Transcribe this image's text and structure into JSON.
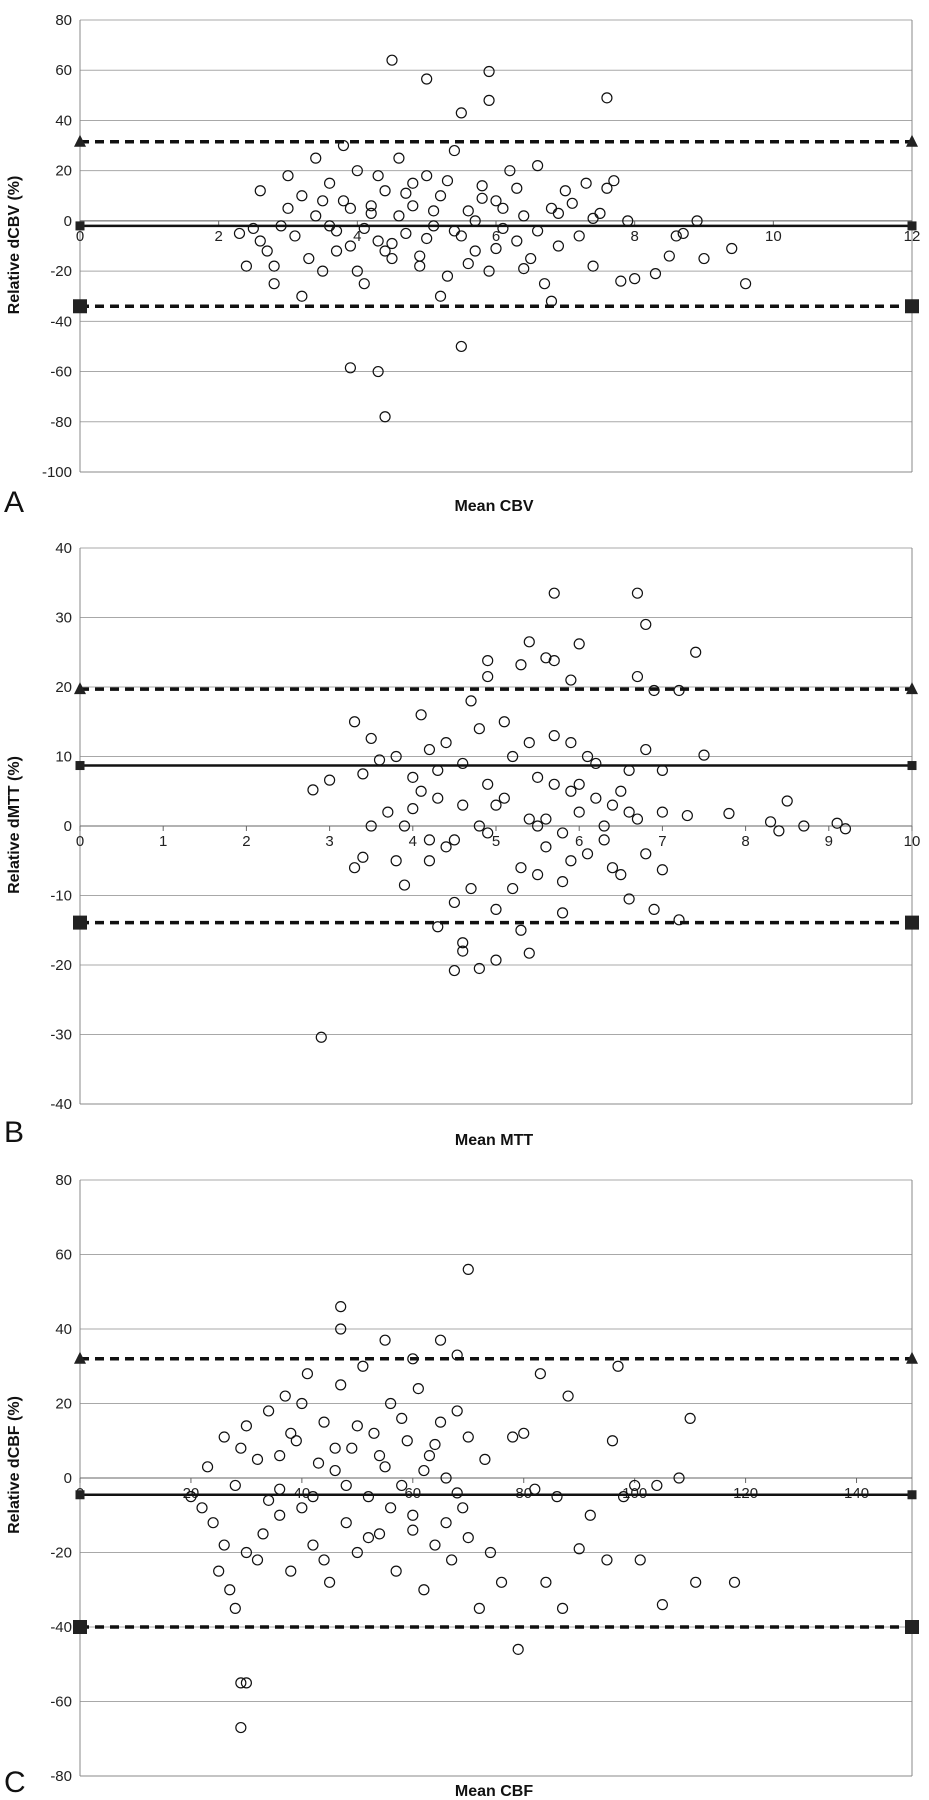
{
  "chart_data": [
    {
      "type": "scatter",
      "panel_label": "A",
      "xlabel": "Mean CBV",
      "ylabel": "Relative dCBV (%)",
      "xlim": [
        0,
        12
      ],
      "ylim": [
        -100,
        80
      ],
      "x_ticks": [
        "0",
        "2",
        "4",
        "6",
        "8",
        "10",
        "12"
      ],
      "y_ticks": [
        "80",
        "60",
        "40",
        "20",
        "0",
        "-20",
        "-40",
        "-60",
        "-80",
        "-100"
      ],
      "grid": "horizontal",
      "reference_lines": [
        {
          "style": "solid",
          "y": -2,
          "marker": "square"
        },
        {
          "style": "dashed",
          "y": 31.5,
          "marker": "triangle"
        },
        {
          "style": "dashed",
          "y": -34,
          "marker": "square"
        }
      ],
      "points": [
        [
          4.5,
          64
        ],
        [
          5.0,
          56.5
        ],
        [
          5.9,
          59.5
        ],
        [
          5.5,
          43
        ],
        [
          5.9,
          48
        ],
        [
          7.6,
          49
        ],
        [
          3.9,
          -58.5
        ],
        [
          4.3,
          -60
        ],
        [
          4.4,
          -78
        ],
        [
          5.5,
          -50
        ],
        [
          2.3,
          -5
        ],
        [
          2.5,
          -3
        ],
        [
          2.6,
          -8
        ],
        [
          2.7,
          -12
        ],
        [
          2.8,
          -18
        ],
        [
          2.9,
          -2
        ],
        [
          3.0,
          5
        ],
        [
          3.1,
          -6
        ],
        [
          3.2,
          10
        ],
        [
          3.3,
          -15
        ],
        [
          3.4,
          2
        ],
        [
          3.5,
          -20
        ],
        [
          3.6,
          15
        ],
        [
          3.7,
          -4
        ],
        [
          3.8,
          8
        ],
        [
          3.9,
          -10
        ],
        [
          4.0,
          20
        ],
        [
          4.1,
          -25
        ],
        [
          4.2,
          3
        ],
        [
          4.3,
          -8
        ],
        [
          4.4,
          12
        ],
        [
          4.5,
          -15
        ],
        [
          4.6,
          25
        ],
        [
          4.7,
          -5
        ],
        [
          4.8,
          6
        ],
        [
          4.9,
          -18
        ],
        [
          5.0,
          18
        ],
        [
          5.1,
          -2
        ],
        [
          5.2,
          10
        ],
        [
          5.3,
          -22
        ],
        [
          5.4,
          28
        ],
        [
          5.5,
          -6
        ],
        [
          5.6,
          4
        ],
        [
          5.7,
          -12
        ],
        [
          5.8,
          14
        ],
        [
          5.9,
          -20
        ],
        [
          6.0,
          8
        ],
        [
          6.1,
          -3
        ],
        [
          6.2,
          20
        ],
        [
          6.3,
          -8
        ],
        [
          6.4,
          2
        ],
        [
          6.5,
          -15
        ],
        [
          6.6,
          22
        ],
        [
          6.7,
          -25
        ],
        [
          6.8,
          5
        ],
        [
          6.9,
          -10
        ],
        [
          7.0,
          12
        ],
        [
          7.2,
          -6
        ],
        [
          7.3,
          15
        ],
        [
          7.4,
          -18
        ],
        [
          7.5,
          3
        ],
        [
          7.7,
          16
        ],
        [
          7.8,
          -24
        ],
        [
          7.9,
          0
        ],
        [
          8.3,
          -21
        ],
        [
          8.5,
          -14
        ],
        [
          8.7,
          -5
        ],
        [
          8.9,
          0
        ],
        [
          9.0,
          -15
        ],
        [
          9.4,
          -11
        ],
        [
          9.6,
          -25
        ],
        [
          8.6,
          -6
        ],
        [
          3.5,
          8
        ],
        [
          3.7,
          -12
        ],
        [
          3.9,
          5
        ],
        [
          4.1,
          -3
        ],
        [
          4.3,
          18
        ],
        [
          4.5,
          -9
        ],
        [
          4.7,
          11
        ],
        [
          4.9,
          -14
        ],
        [
          5.1,
          4
        ],
        [
          5.3,
          16
        ],
        [
          5.6,
          -17
        ],
        [
          5.8,
          9
        ],
        [
          6.0,
          -11
        ],
        [
          6.3,
          13
        ],
        [
          6.6,
          -4
        ],
        [
          7.1,
          7
        ],
        [
          7.6,
          13
        ],
        [
          8.0,
          -23
        ],
        [
          5.2,
          -30
        ],
        [
          6.8,
          -32
        ],
        [
          2.4,
          -18
        ],
        [
          2.6,
          12
        ],
        [
          2.8,
          -25
        ],
        [
          3.0,
          18
        ],
        [
          3.2,
          -30
        ],
        [
          3.4,
          25
        ],
        [
          3.6,
          -2
        ],
        [
          3.8,
          30
        ],
        [
          4.0,
          -20
        ],
        [
          4.2,
          6
        ],
        [
          4.4,
          -12
        ],
        [
          4.6,
          2
        ],
        [
          4.8,
          15
        ],
        [
          5.0,
          -7
        ],
        [
          5.4,
          -4
        ],
        [
          5.7,
          0
        ],
        [
          6.1,
          5
        ],
        [
          6.4,
          -19
        ],
        [
          6.9,
          3
        ],
        [
          7.4,
          1
        ]
      ]
    },
    {
      "type": "scatter",
      "panel_label": "B",
      "xlabel": "Mean MTT",
      "ylabel": "Relative dMTT (%)",
      "xlim": [
        0,
        10
      ],
      "ylim": [
        -40,
        40
      ],
      "x_ticks": [
        "0",
        "1",
        "2",
        "3",
        "4",
        "5",
        "6",
        "7",
        "8",
        "9",
        "10"
      ],
      "y_ticks": [
        "40",
        "30",
        "20",
        "10",
        "0",
        "-10",
        "-20",
        "-30",
        "-40"
      ],
      "grid": "horizontal",
      "reference_lines": [
        {
          "style": "solid",
          "y": 8.7,
          "marker": "square"
        },
        {
          "style": "dashed",
          "y": 19.7,
          "marker": "triangle"
        },
        {
          "style": "dashed",
          "y": -13.9,
          "marker": "square"
        }
      ],
      "points": [
        [
          5.7,
          33.5
        ],
        [
          6.7,
          33.5
        ],
        [
          6.8,
          29
        ],
        [
          5.4,
          26.5
        ],
        [
          6.0,
          26.2
        ],
        [
          7.4,
          25
        ],
        [
          5.6,
          24.2
        ],
        [
          5.7,
          23.8
        ],
        [
          4.9,
          23.8
        ],
        [
          5.3,
          23.2
        ],
        [
          4.9,
          21.5
        ],
        [
          5.9,
          21
        ],
        [
          6.7,
          21.5
        ],
        [
          7.2,
          19.5
        ],
        [
          6.9,
          19.5
        ],
        [
          2.9,
          -30.4
        ],
        [
          2.8,
          5.2
        ],
        [
          3.0,
          6.6
        ],
        [
          3.3,
          15
        ],
        [
          3.5,
          12.6
        ],
        [
          3.6,
          9.5
        ],
        [
          3.4,
          7.5
        ],
        [
          3.5,
          0
        ],
        [
          3.3,
          -6
        ],
        [
          3.4,
          -4.5
        ],
        [
          3.8,
          10
        ],
        [
          3.9,
          0
        ],
        [
          4.0,
          2.5
        ],
        [
          4.1,
          5
        ],
        [
          4.2,
          -5
        ],
        [
          4.3,
          8
        ],
        [
          4.4,
          12
        ],
        [
          4.5,
          -2
        ],
        [
          4.6,
          3
        ],
        [
          4.7,
          -9
        ],
        [
          4.8,
          14
        ],
        [
          4.9,
          6
        ],
        [
          5.0,
          -12
        ],
        [
          5.1,
          4
        ],
        [
          5.2,
          10
        ],
        [
          5.3,
          -6
        ],
        [
          5.4,
          1
        ],
        [
          5.5,
          7
        ],
        [
          5.6,
          -3
        ],
        [
          5.7,
          13
        ],
        [
          5.8,
          -8
        ],
        [
          5.9,
          5
        ],
        [
          6.0,
          2
        ],
        [
          6.1,
          -4
        ],
        [
          6.2,
          9
        ],
        [
          6.3,
          0
        ],
        [
          6.4,
          3
        ],
        [
          6.5,
          -7
        ],
        [
          6.6,
          8
        ],
        [
          6.7,
          1
        ],
        [
          6.8,
          11
        ],
        [
          6.9,
          -12
        ],
        [
          7.0,
          2
        ],
        [
          7.2,
          -13.5
        ],
        [
          7.3,
          1.5
        ],
        [
          7.5,
          10.2
        ],
        [
          7.8,
          1.8
        ],
        [
          8.3,
          0.6
        ],
        [
          8.4,
          -0.7
        ],
        [
          8.5,
          3.6
        ],
        [
          8.7,
          0
        ],
        [
          9.1,
          0.4
        ],
        [
          9.2,
          -0.4
        ],
        [
          4.3,
          -14.5
        ],
        [
          4.6,
          -18
        ],
        [
          4.8,
          -20.5
        ],
        [
          4.5,
          -20.8
        ],
        [
          5.0,
          -19.3
        ],
        [
          5.4,
          -18.3
        ],
        [
          4.6,
          -16.8
        ],
        [
          5.8,
          -12.5
        ],
        [
          6.6,
          -10.5
        ],
        [
          7.0,
          -6.3
        ],
        [
          3.9,
          -8.5
        ],
        [
          4.1,
          16
        ],
        [
          4.3,
          4
        ],
        [
          4.5,
          -11
        ],
        [
          4.7,
          18
        ],
        [
          4.9,
          -1
        ],
        [
          5.1,
          15
        ],
        [
          5.3,
          -15
        ],
        [
          5.5,
          0
        ],
        [
          5.7,
          6
        ],
        [
          5.9,
          -5
        ],
        [
          6.1,
          10
        ],
        [
          6.3,
          -2
        ],
        [
          6.5,
          5
        ],
        [
          3.7,
          2
        ],
        [
          3.8,
          -5
        ],
        [
          4.0,
          7
        ],
        [
          4.2,
          11
        ],
        [
          4.4,
          -3
        ],
        [
          4.6,
          9
        ],
        [
          4.8,
          0
        ],
        [
          5.0,
          3
        ],
        [
          5.2,
          -9
        ],
        [
          5.4,
          12
        ],
        [
          5.6,
          1
        ],
        [
          5.8,
          -1
        ],
        [
          6.0,
          6
        ],
        [
          6.2,
          4
        ],
        [
          6.4,
          -6
        ],
        [
          6.6,
          2
        ],
        [
          6.8,
          -4
        ],
        [
          7.0,
          8
        ],
        [
          5.5,
          -7
        ],
        [
          4.2,
          -2
        ],
        [
          5.9,
          12
        ]
      ]
    },
    {
      "type": "scatter",
      "panel_label": "C",
      "xlabel": "Mean CBF",
      "ylabel": "Relative dCBF (%)",
      "xlim": [
        0,
        150
      ],
      "ylim": [
        -80,
        80
      ],
      "x_ticks": [
        "0",
        "20",
        "40",
        "60",
        "80",
        "100",
        "120",
        "140"
      ],
      "y_ticks": [
        "80",
        "60",
        "40",
        "20",
        "0",
        "-20",
        "-40",
        "-60",
        "-80"
      ],
      "grid": "horizontal",
      "reference_lines": [
        {
          "style": "solid",
          "y": -4.5,
          "marker": "square"
        },
        {
          "style": "dashed",
          "y": 32,
          "marker": "triangle"
        },
        {
          "style": "dashed",
          "y": -40,
          "marker": "square"
        }
      ],
      "points": [
        [
          70,
          56
        ],
        [
          47,
          46
        ],
        [
          47,
          40
        ],
        [
          55,
          37
        ],
        [
          65,
          37
        ],
        [
          68,
          33
        ],
        [
          60,
          32
        ],
        [
          29,
          -55
        ],
        [
          30,
          -55
        ],
        [
          29,
          -67
        ],
        [
          20,
          -5
        ],
        [
          22,
          -8
        ],
        [
          23,
          3
        ],
        [
          24,
          -12
        ],
        [
          26,
          11
        ],
        [
          27,
          -30
        ],
        [
          28,
          -35
        ],
        [
          29,
          8
        ],
        [
          30,
          -20
        ],
        [
          32,
          5
        ],
        [
          33,
          -15
        ],
        [
          34,
          18
        ],
        [
          36,
          -3
        ],
        [
          37,
          22
        ],
        [
          38,
          -25
        ],
        [
          39,
          10
        ],
        [
          40,
          -8
        ],
        [
          41,
          28
        ],
        [
          42,
          -18
        ],
        [
          43,
          4
        ],
        [
          44,
          15
        ],
        [
          45,
          -28
        ],
        [
          46,
          2
        ],
        [
          47,
          25
        ],
        [
          48,
          -12
        ],
        [
          49,
          8
        ],
        [
          50,
          -20
        ],
        [
          51,
          30
        ],
        [
          52,
          -5
        ],
        [
          53,
          12
        ],
        [
          54,
          -15
        ],
        [
          55,
          3
        ],
        [
          56,
          20
        ],
        [
          57,
          -25
        ],
        [
          58,
          -2
        ],
        [
          59,
          10
        ],
        [
          60,
          -10
        ],
        [
          61,
          24
        ],
        [
          62,
          -30
        ],
        [
          63,
          6
        ],
        [
          64,
          -18
        ],
        [
          65,
          15
        ],
        [
          66,
          0
        ],
        [
          67,
          -22
        ],
        [
          68,
          18
        ],
        [
          69,
          -8
        ],
        [
          70,
          11
        ],
        [
          72,
          -35
        ],
        [
          73,
          5
        ],
        [
          74,
          -20
        ],
        [
          76,
          -28
        ],
        [
          78,
          11
        ],
        [
          79,
          -46
        ],
        [
          80,
          12
        ],
        [
          82,
          -3
        ],
        [
          83,
          28
        ],
        [
          84,
          -28
        ],
        [
          86,
          -5
        ],
        [
          87,
          -35
        ],
        [
          88,
          22
        ],
        [
          90,
          -19
        ],
        [
          92,
          -10
        ],
        [
          95,
          -22
        ],
        [
          96,
          10
        ],
        [
          97,
          30
        ],
        [
          98,
          -5
        ],
        [
          100,
          -2
        ],
        [
          101,
          -22
        ],
        [
          104,
          -2
        ],
        [
          105,
          -34
        ],
        [
          108,
          0
        ],
        [
          110,
          16
        ],
        [
          111,
          -28
        ],
        [
          118,
          -28
        ],
        [
          36,
          -10
        ],
        [
          38,
          12
        ],
        [
          40,
          20
        ],
        [
          42,
          -5
        ],
        [
          44,
          -22
        ],
        [
          46,
          8
        ],
        [
          48,
          -2
        ],
        [
          50,
          14
        ],
        [
          52,
          -16
        ],
        [
          54,
          6
        ],
        [
          56,
          -8
        ],
        [
          58,
          16
        ],
        [
          60,
          -14
        ],
        [
          62,
          2
        ],
        [
          64,
          9
        ],
        [
          66,
          -12
        ],
        [
          68,
          -4
        ],
        [
          70,
          -16
        ],
        [
          26,
          -18
        ],
        [
          28,
          -2
        ],
        [
          30,
          14
        ],
        [
          32,
          -22
        ],
        [
          34,
          -6
        ],
        [
          36,
          6
        ],
        [
          25,
          -25
        ]
      ]
    }
  ]
}
